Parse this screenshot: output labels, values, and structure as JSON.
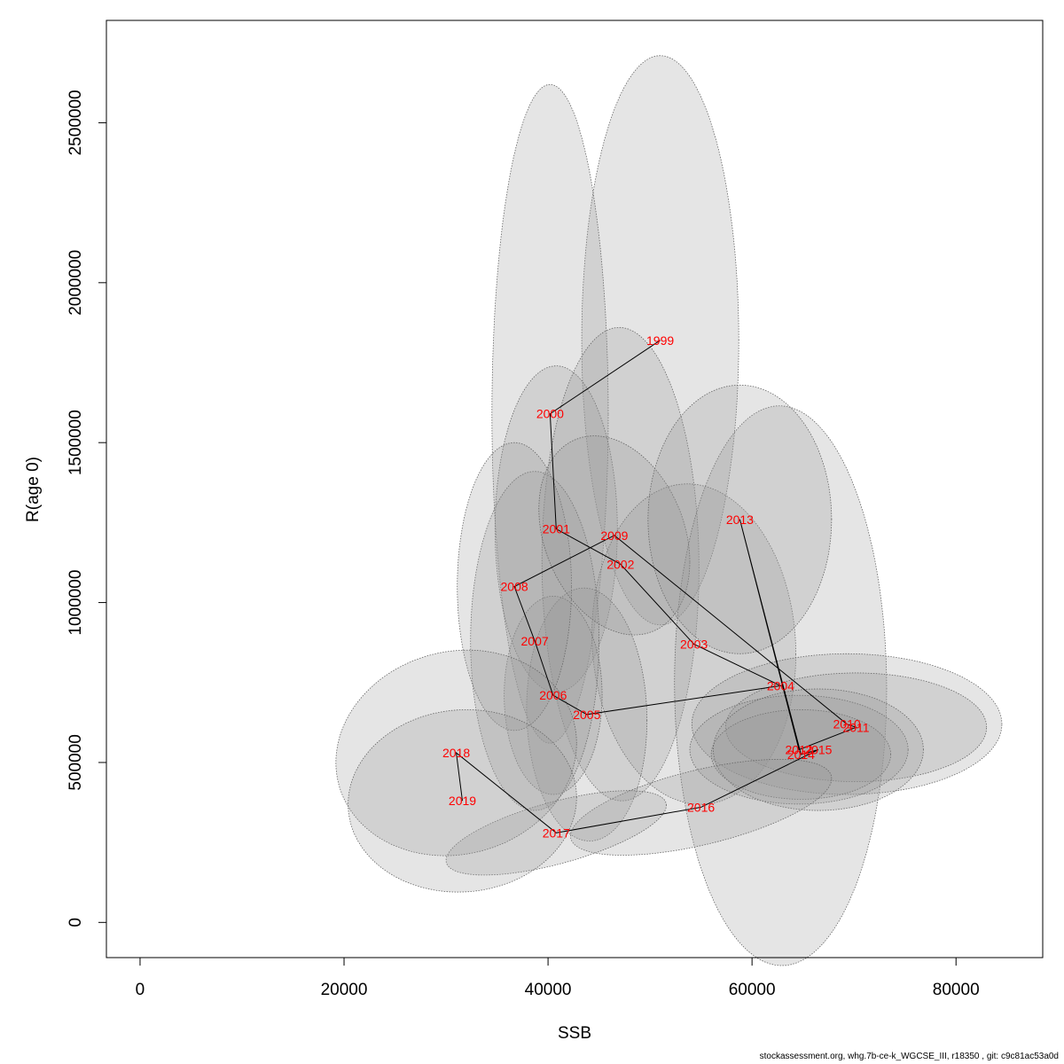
{
  "chart_data": {
    "type": "scatter",
    "xlabel": "SSB",
    "ylabel": "R(age 0)",
    "xlim": [
      -3300,
      88500
    ],
    "ylim": [
      -110000,
      2820000
    ],
    "x_ticks": [
      0,
      20000,
      40000,
      60000,
      80000
    ],
    "y_ticks": [
      0,
      500000,
      1000000,
      1500000,
      2000000,
      2500000
    ],
    "x_tick_labels": [
      "0",
      "20000",
      "40000",
      "60000",
      "80000"
    ],
    "y_tick_labels": [
      "0",
      "500000",
      "1000000",
      "1500000",
      "2000000",
      "2500000"
    ],
    "point_color": "#ff0000",
    "line_color": "#000000",
    "ellipse_fill": "#969696",
    "ellipse_opacity": 0.25,
    "points": [
      {
        "year": "1999",
        "x": 51000,
        "y": 1820000,
        "ellipse": {
          "rx": 7700,
          "ry": 890000,
          "tilt": 0
        }
      },
      {
        "year": "2000",
        "x": 40200,
        "y": 1590000,
        "ellipse": {
          "rx": 5700,
          "ry": 1030000,
          "tilt": 0
        }
      },
      {
        "year": "2001",
        "x": 40800,
        "y": 1230000,
        "ellipse": {
          "rx": 6000,
          "ry": 510000,
          "tilt": 0
        }
      },
      {
        "year": "2002",
        "x": 47100,
        "y": 1120000,
        "ellipse": {
          "rx": 7700,
          "ry": 740000,
          "tilt": 0.05
        }
      },
      {
        "year": "2003",
        "x": 54300,
        "y": 870000,
        "ellipse": {
          "rx": 10000,
          "ry": 500000,
          "tilt": 0.1
        }
      },
      {
        "year": "2004",
        "x": 62800,
        "y": 740000,
        "ellipse": {
          "rx": 10400,
          "ry": 875000,
          "tilt": 0.03
        }
      },
      {
        "year": "2005",
        "x": 43800,
        "y": 650000,
        "ellipse": {
          "rx": 5900,
          "ry": 395000,
          "tilt": 0.1
        }
      },
      {
        "year": "2006",
        "x": 40500,
        "y": 710000,
        "ellipse": {
          "rx": 4800,
          "ry": 310000,
          "tilt": 0
        }
      },
      {
        "year": "2007",
        "x": 38700,
        "y": 880000,
        "ellipse": {
          "rx": 6300,
          "ry": 530000,
          "tilt": 0
        }
      },
      {
        "year": "2008",
        "x": 36700,
        "y": 1050000,
        "ellipse": {
          "rx": 5600,
          "ry": 450000,
          "tilt": 0
        }
      },
      {
        "year": "2009",
        "x": 46500,
        "y": 1210000,
        "ellipse": {
          "rx": 7400,
          "ry": 300000,
          "tilt": 0.35
        }
      },
      {
        "year": "2010",
        "x": 69300,
        "y": 620000,
        "ellipse": {
          "rx": 15200,
          "ry": 220000,
          "tilt": 0
        }
      },
      {
        "year": "2011",
        "x": 70200,
        "y": 610000,
        "ellipse": {
          "rx": 12800,
          "ry": 170000,
          "tilt": 0
        }
      },
      {
        "year": "2012",
        "x": 64600,
        "y": 540000,
        "ellipse": {
          "rx": 10700,
          "ry": 170000,
          "tilt": 0
        }
      },
      {
        "year": "2013",
        "x": 58800,
        "y": 1260000,
        "ellipse": {
          "rx": 9000,
          "ry": 420000,
          "tilt": 0
        }
      },
      {
        "year": "2014",
        "x": 64800,
        "y": 525000,
        "ellipse": {
          "rx": 8800,
          "ry": 140000,
          "tilt": 0
        }
      },
      {
        "year": "2015",
        "x": 66500,
        "y": 540000,
        "ellipse": {
          "rx": 10300,
          "ry": 190000,
          "tilt": 0
        }
      },
      {
        "year": "2016",
        "x": 55000,
        "y": 360000,
        "ellipse": {
          "rx": 12800,
          "ry": 120000,
          "tilt": -0.22
        }
      },
      {
        "year": "2017",
        "x": 40800,
        "y": 280000,
        "ellipse": {
          "rx": 10800,
          "ry": 100000,
          "tilt": -0.25
        }
      },
      {
        "year": "2018",
        "x": 31000,
        "y": 530000,
        "ellipse": {
          "rx": 11800,
          "ry": 320000,
          "tilt": -0.08
        }
      },
      {
        "year": "2019",
        "x": 31600,
        "y": 380000,
        "ellipse": {
          "rx": 11200,
          "ry": 285000,
          "tilt": -0.03
        }
      }
    ]
  },
  "footer": "stockassessment.org, whg.7b-ce-k_WGCSE_III, r18350 , git: c9c81ac53a0d"
}
